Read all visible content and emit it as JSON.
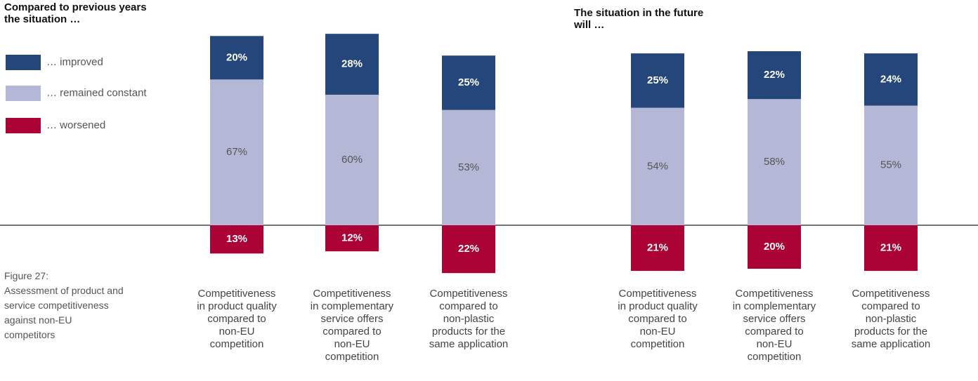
{
  "panels": [
    {
      "title_lines": [
        "Compared to previous years",
        "the situation …"
      ],
      "categories": [
        [
          "Competitiveness",
          "in product quality",
          "compared to",
          "non-EU",
          "competition"
        ],
        [
          "Competitiveness",
          "in complementary",
          "service offers",
          "compared to",
          "non-EU",
          "competition"
        ],
        [
          "Competitiveness",
          "compared to",
          "non-plastic",
          "products for the",
          "same application"
        ]
      ]
    },
    {
      "title_lines": [
        "The situation in the future",
        "will …"
      ],
      "categories": [
        [
          "Competitiveness",
          "in product quality",
          "compared to",
          "non-EU",
          "competition"
        ],
        [
          "Competitiveness",
          "in complementary",
          "service offers",
          "compared to",
          "non-EU",
          "competition"
        ],
        [
          "Competitiveness",
          "compared to",
          "non-plastic",
          "products for the",
          "same application"
        ]
      ]
    }
  ],
  "legend": {
    "items": [
      {
        "label": "… improved",
        "color": "#24467a"
      },
      {
        "label": "… remained constant",
        "color": "#b4b8d6"
      },
      {
        "label": "… worsened",
        "color": "#ab0336"
      }
    ]
  },
  "caption": {
    "lines": [
      "Figure 27:",
      "Assessment of product and",
      "service competitiveness",
      "against non-EU",
      "competitors"
    ]
  },
  "chart_data": {
    "type": "bar",
    "stacked": "diverging",
    "baseline": 0,
    "legend_placement": "top-left",
    "grid": false,
    "series": [
      {
        "name": "… improved",
        "color": "#24467a",
        "label_color": "#ffffff",
        "label_bold": true
      },
      {
        "name": "… remained constant",
        "color": "#b4b8d6",
        "label_color": "#555555",
        "label_bold": false
      },
      {
        "name": "… worsened",
        "color": "#ab0336",
        "label_color": "#ffffff",
        "label_bold": true
      }
    ],
    "groups": [
      {
        "title": "Compared to previous years the situation …",
        "bars": [
          {
            "improved": 20,
            "constant": 67,
            "worsened": 13
          },
          {
            "improved": 28,
            "constant": 60,
            "worsened": 12
          },
          {
            "improved": 25,
            "constant": 53,
            "worsened": 22
          }
        ]
      },
      {
        "title": "The situation in the future will …",
        "bars": [
          {
            "improved": 25,
            "constant": 54,
            "worsened": 21
          },
          {
            "improved": 22,
            "constant": 58,
            "worsened": 20
          },
          {
            "improved": 24,
            "constant": 55,
            "worsened": 21
          }
        ]
      }
    ],
    "unit": "%"
  }
}
